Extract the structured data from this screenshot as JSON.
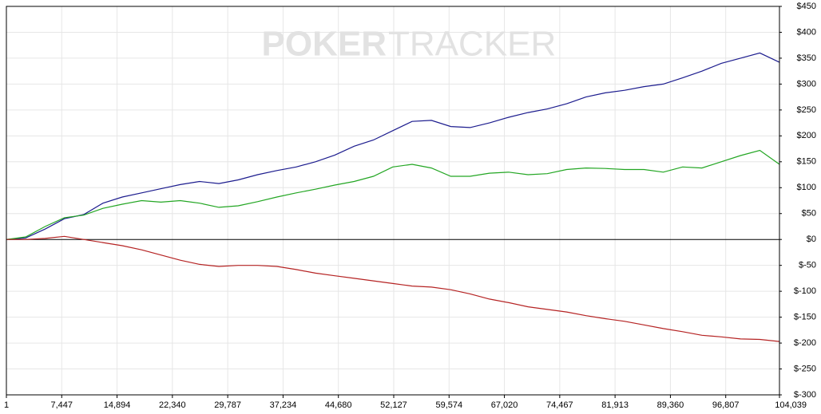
{
  "chart_data": {
    "type": "line",
    "watermark": [
      "POKER",
      "TRACKER"
    ],
    "x": [
      1,
      2600,
      5200,
      7800,
      10400,
      13000,
      15600,
      18200,
      20800,
      23400,
      26000,
      28600,
      31200,
      33800,
      36400,
      39000,
      41600,
      44200,
      46800,
      49400,
      52000,
      54600,
      57200,
      59800,
      62400,
      65000,
      67600,
      70200,
      72800,
      75400,
      78000,
      80600,
      83200,
      85800,
      88400,
      91000,
      93600,
      96200,
      98800,
      101400,
      104039
    ],
    "series": [
      {
        "color": "#1c1c8e",
        "values": [
          0,
          3,
          20,
          40,
          48,
          70,
          82,
          90,
          98,
          106,
          112,
          108,
          115,
          125,
          133,
          140,
          150,
          163,
          180,
          192,
          210,
          228,
          230,
          218,
          216,
          225,
          236,
          245,
          252,
          262,
          275,
          283,
          288,
          295,
          300,
          312,
          325,
          340,
          350,
          360,
          342
        ]
      },
      {
        "color": "#23a623",
        "values": [
          0,
          5,
          25,
          42,
          47,
          60,
          68,
          75,
          72,
          75,
          70,
          62,
          65,
          73,
          82,
          90,
          97,
          105,
          112,
          122,
          140,
          145,
          138,
          122,
          122,
          128,
          130,
          125,
          127,
          135,
          138,
          137,
          135,
          135,
          130,
          140,
          138,
          150,
          162,
          172,
          145
        ]
      },
      {
        "color": "#b52323",
        "values": [
          0,
          0,
          2,
          6,
          0,
          -6,
          -12,
          -20,
          -30,
          -40,
          -48,
          -52,
          -50,
          -50,
          -52,
          -58,
          -65,
          -70,
          -75,
          -80,
          -85,
          -90,
          -92,
          -97,
          -105,
          -115,
          -122,
          -130,
          -135,
          -140,
          -147,
          -153,
          -158,
          -165,
          -172,
          -178,
          -185,
          -188,
          -192,
          -193,
          -197
        ]
      }
    ],
    "xlim": [
      1,
      104039
    ],
    "xticks": [
      1,
      {
        "value": 7447,
        "label": "7,447"
      },
      {
        "value": 14894,
        "label": "14,894"
      },
      {
        "value": 22340,
        "label": "22,340"
      },
      {
        "value": 29787,
        "label": "29,787"
      },
      {
        "value": 37234,
        "label": "37,234"
      },
      {
        "value": 44680,
        "label": "44,680"
      },
      {
        "value": 52127,
        "label": "52,127"
      },
      {
        "value": 59574,
        "label": "59,574"
      },
      {
        "value": 67020,
        "label": "67,020"
      },
      {
        "value": 74467,
        "label": "74,467"
      },
      {
        "value": 81913,
        "label": "81,913"
      },
      {
        "value": 89360,
        "label": "89,360"
      },
      {
        "value": 96807,
        "label": "96,807"
      },
      {
        "value": 104039,
        "label": "104,039"
      }
    ],
    "ylim": [
      -300,
      450
    ],
    "yticks": [
      {
        "value": 450,
        "label": "$450"
      },
      {
        "value": 400,
        "label": "$400"
      },
      {
        "value": 350,
        "label": "$350"
      },
      {
        "value": 300,
        "label": "$300"
      },
      {
        "value": 250,
        "label": "$250"
      },
      {
        "value": 200,
        "label": "$200"
      },
      {
        "value": 150,
        "label": "$150"
      },
      {
        "value": 100,
        "label": "$100"
      },
      {
        "value": 50,
        "label": "$50"
      },
      {
        "value": 0,
        "label": "$0"
      },
      {
        "value": -50,
        "label": "$-50"
      },
      {
        "value": -100,
        "label": "$-100"
      },
      {
        "value": -150,
        "label": "$-150"
      },
      {
        "value": -200,
        "label": "$-200"
      },
      {
        "value": -250,
        "label": "$-250"
      },
      {
        "value": -300,
        "label": "$-300"
      }
    ],
    "grid": true
  }
}
